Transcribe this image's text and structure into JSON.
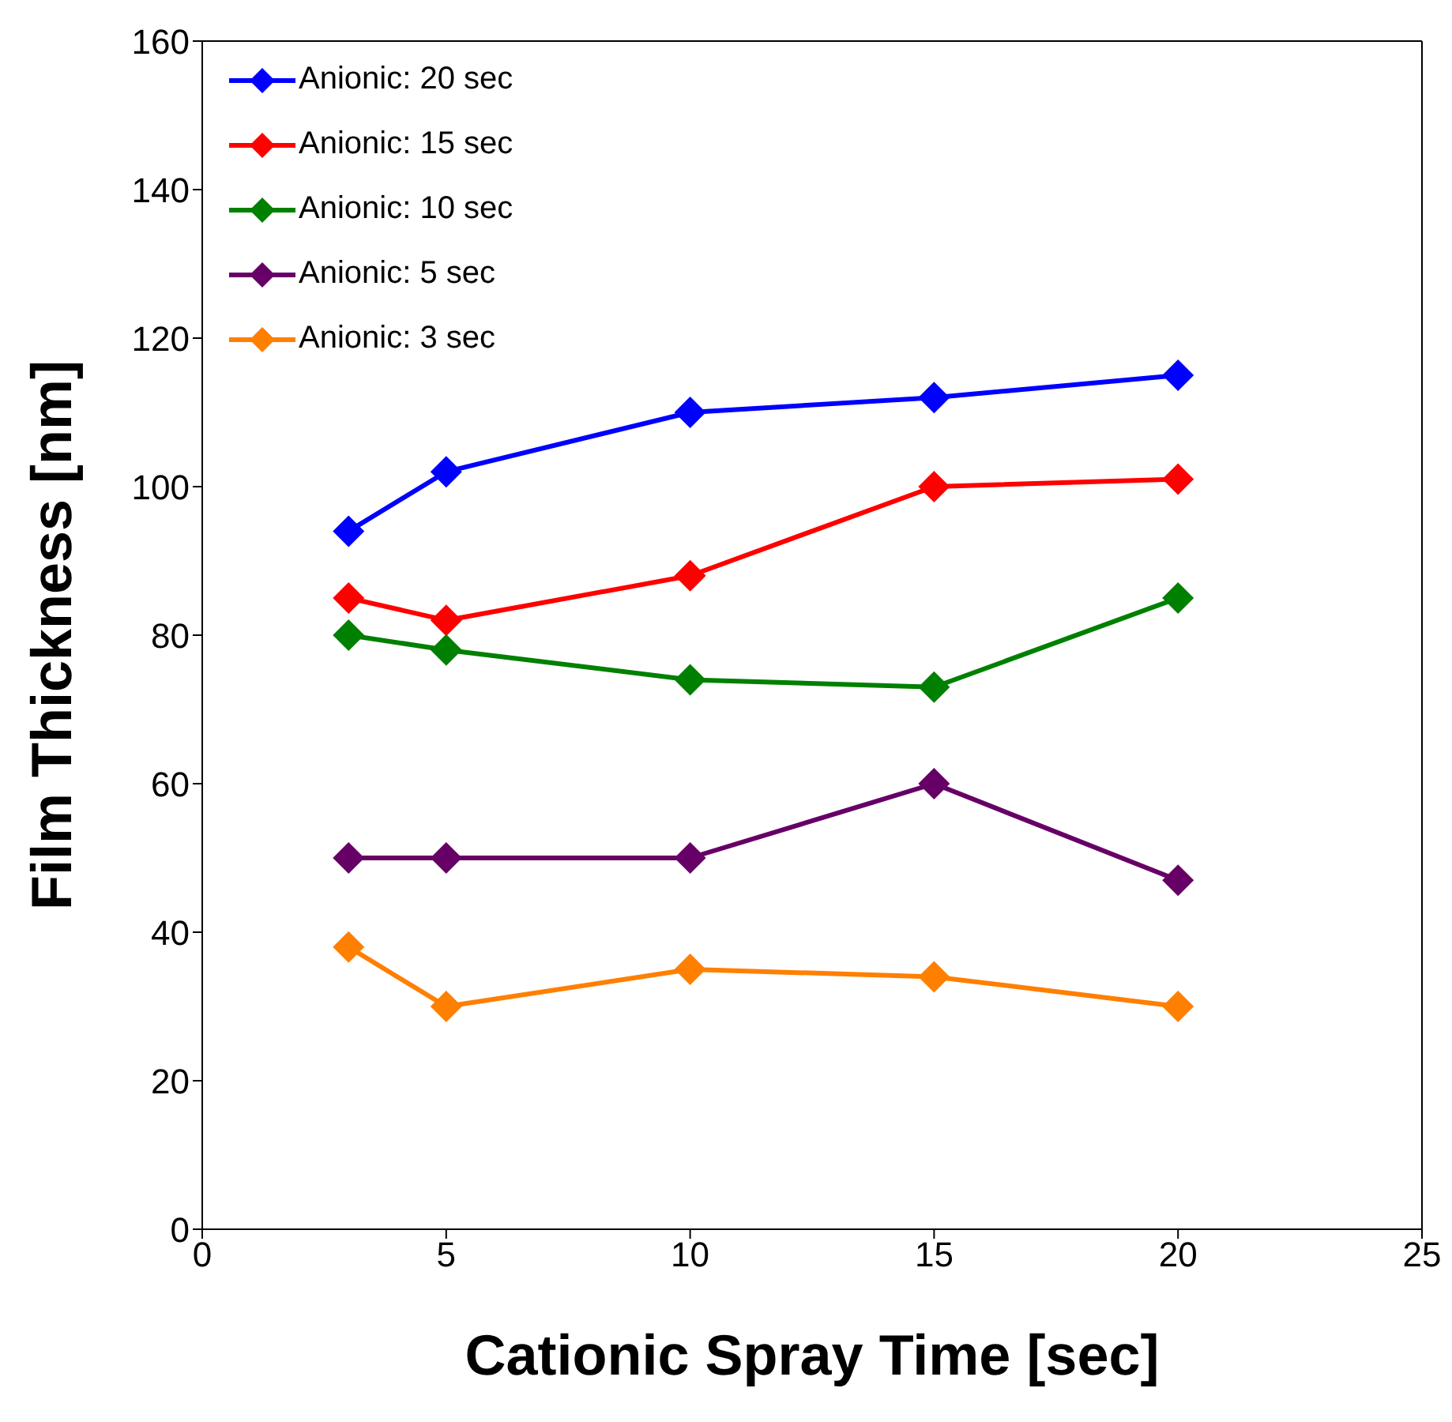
{
  "chart_data": {
    "type": "line",
    "xlabel": "Cationic Spray Time [sec]",
    "ylabel": "Film Thickness [nm]",
    "x": [
      3,
      5,
      10,
      15,
      20
    ],
    "series": [
      {
        "name": "Anionic: 20 sec",
        "color": "#0000ff",
        "values": [
          94,
          102,
          110,
          112,
          115
        ]
      },
      {
        "name": "Anionic: 15 sec",
        "color": "#ff0000",
        "values": [
          85,
          82,
          88,
          100,
          101
        ]
      },
      {
        "name": "Anionic: 10 sec",
        "color": "#008000",
        "values": [
          80,
          78,
          74,
          73,
          85
        ]
      },
      {
        "name": "Anionic: 5 sec",
        "color": "#660066",
        "values": [
          50,
          50,
          50,
          60,
          47
        ]
      },
      {
        "name": "Anionic: 3 sec",
        "color": "#ff7f00",
        "values": [
          38,
          30,
          35,
          34,
          30
        ]
      }
    ],
    "xlim": [
      0,
      25
    ],
    "xticks": [
      0,
      5,
      10,
      15,
      20,
      25
    ],
    "ylim": [
      0,
      160
    ],
    "yticks": [
      0,
      20,
      40,
      60,
      80,
      100,
      120,
      140,
      160
    ],
    "grid": false,
    "legend": "top left",
    "marker": "diamond",
    "line_style": "solid"
  }
}
